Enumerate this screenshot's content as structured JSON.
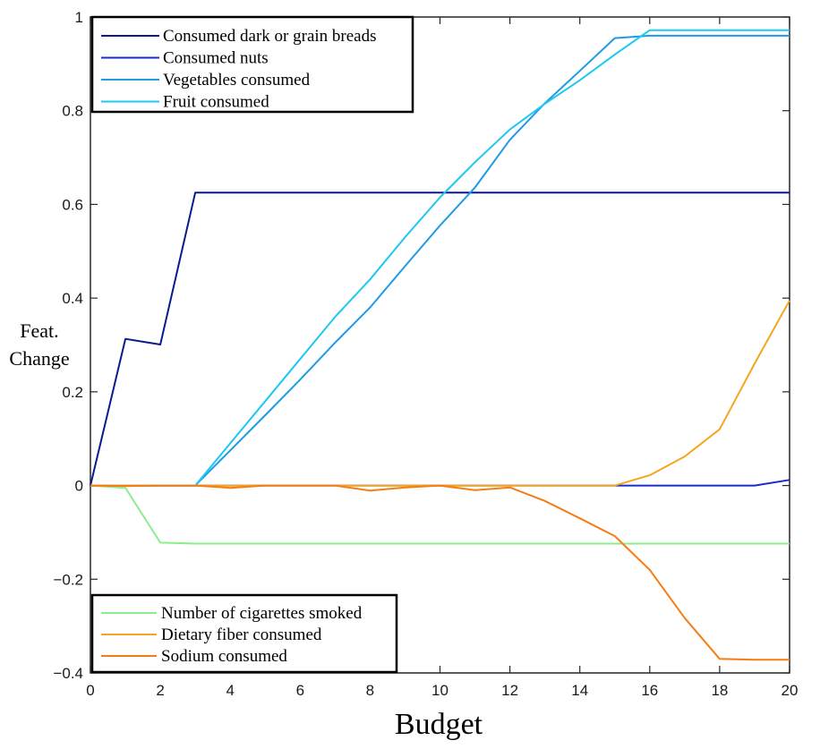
{
  "chart_data": {
    "type": "line",
    "xlabel": "Budget",
    "ylabel_lines": [
      "Feat.",
      "Change"
    ],
    "xlim": [
      0,
      20
    ],
    "ylim": [
      -0.4,
      1
    ],
    "xticks": [
      0,
      2,
      4,
      6,
      8,
      10,
      12,
      14,
      16,
      18,
      20
    ],
    "yticks": [
      -0.4,
      -0.2,
      0,
      0.2,
      0.4,
      0.6,
      0.8,
      1
    ],
    "xtick_labels": [
      "0",
      "2",
      "4",
      "6",
      "8",
      "10",
      "12",
      "14",
      "16",
      "18",
      "20"
    ],
    "ytick_labels": [
      "−0.4",
      "−0.2",
      "0",
      "0.2",
      "0.4",
      "0.6",
      "0.8",
      "1"
    ],
    "grid": false,
    "x": [
      0,
      1,
      2,
      3,
      4,
      5,
      6,
      7,
      8,
      9,
      10,
      11,
      12,
      13,
      14,
      15,
      16,
      17,
      18,
      19,
      20
    ],
    "series": [
      {
        "name": "Consumed dark or grain breads",
        "color": "#0a1a8c",
        "legend": "top",
        "values": [
          0,
          0.313,
          0.301,
          0.625,
          0.625,
          0.625,
          0.625,
          0.625,
          0.625,
          0.625,
          0.625,
          0.625,
          0.625,
          0.625,
          0.625,
          0.625,
          0.625,
          0.625,
          0.625,
          0.625,
          0.625
        ]
      },
      {
        "name": "Consumed nuts",
        "color": "#1a2ccc",
        "legend": "top",
        "values": [
          0,
          0,
          0,
          0,
          0,
          0,
          0,
          0,
          0,
          0,
          0,
          0,
          0,
          0,
          0,
          0,
          0,
          0,
          0,
          0,
          0.012
        ]
      },
      {
        "name": "Vegetables consumed",
        "color": "#1e9be6",
        "legend": "top",
        "values": [
          0,
          0,
          0,
          0,
          0.075,
          0.15,
          0.226,
          0.305,
          0.38,
          0.468,
          0.555,
          0.636,
          0.738,
          0.816,
          0.885,
          0.955,
          0.96,
          0.96,
          0.96,
          0.96,
          0.96
        ]
      },
      {
        "name": "Fruit consumed",
        "color": "#1ec8f0",
        "legend": "top",
        "values": [
          0,
          0,
          0,
          0,
          0.09,
          0.18,
          0.27,
          0.36,
          0.44,
          0.53,
          0.615,
          0.69,
          0.76,
          0.815,
          0.865,
          0.92,
          0.972,
          0.972,
          0.972,
          0.972,
          0.972
        ]
      },
      {
        "name": "Number of cigarettes smoked",
        "color": "#8ced8c",
        "legend": "bottom",
        "values": [
          0,
          -0.005,
          -0.122,
          -0.124,
          -0.124,
          -0.124,
          -0.124,
          -0.124,
          -0.124,
          -0.124,
          -0.124,
          -0.124,
          -0.124,
          -0.124,
          -0.124,
          -0.124,
          -0.124,
          -0.124,
          -0.124,
          -0.124,
          -0.124
        ]
      },
      {
        "name": "Dietary fiber consumed",
        "color": "#f5a61e",
        "legend": "bottom",
        "values": [
          0,
          0,
          0,
          0,
          0,
          0,
          0,
          0,
          0,
          0,
          0,
          0,
          0,
          0,
          0,
          0,
          0.022,
          0.062,
          0.12,
          0.26,
          0.395
        ]
      },
      {
        "name": "Sodium consumed",
        "color": "#f57d14",
        "legend": "bottom",
        "values": [
          0,
          -0.001,
          0,
          0,
          -0.005,
          0,
          0,
          0,
          -0.011,
          -0.004,
          0,
          -0.01,
          -0.004,
          -0.033,
          -0.07,
          -0.108,
          -0.18,
          -0.283,
          -0.37,
          -0.372,
          -0.372
        ]
      }
    ]
  }
}
